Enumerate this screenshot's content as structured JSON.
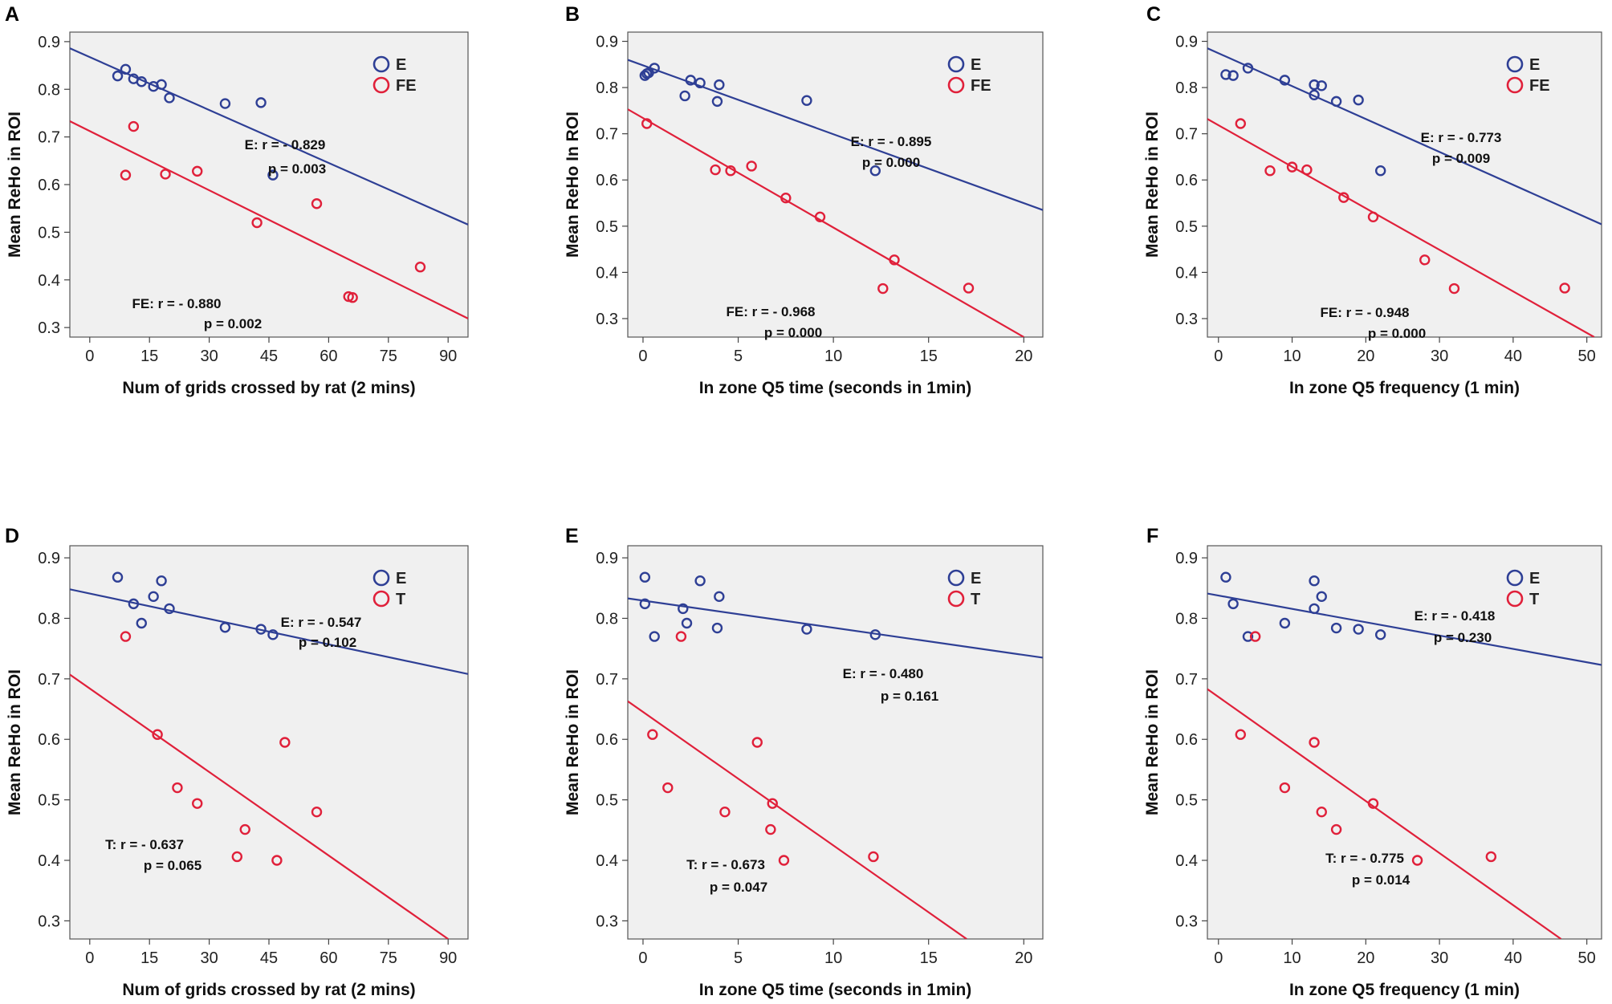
{
  "chart_data": [
    {
      "panel": "A",
      "type": "scatter",
      "xlabel": "Num of grids crossed by rat (2 mins)",
      "ylabel": "Mean ReHo in ROI",
      "xlim": [
        -5,
        95
      ],
      "ylim": [
        0.28,
        0.92
      ],
      "xticks": [
        "0",
        "15",
        "30",
        "45",
        "60",
        "75",
        "90"
      ],
      "yticks": [
        "0.3",
        "0.4",
        "0.5",
        "0.6",
        "0.7",
        "0.8",
        "0.9"
      ],
      "series": [
        {
          "name": "E",
          "color": "#2e3f95",
          "points": [
            [
              7,
              0.828
            ],
            [
              9,
              0.842
            ],
            [
              11,
              0.822
            ],
            [
              13,
              0.816
            ],
            [
              16,
              0.806
            ],
            [
              18,
              0.81
            ],
            [
              20,
              0.782
            ],
            [
              34,
              0.77
            ],
            [
              43,
              0.772
            ],
            [
              46,
              0.62
            ]
          ],
          "fit": [
            [
              -5,
              0.886
            ],
            [
              95,
              0.516
            ]
          ],
          "stat": "E: r = - 0.829",
          "p": "p = 0.003"
        },
        {
          "name": "FE",
          "color": "#e0203a",
          "points": [
            [
              9,
              0.62
            ],
            [
              11,
              0.722
            ],
            [
              19,
              0.622
            ],
            [
              27,
              0.628
            ],
            [
              42,
              0.52
            ],
            [
              57,
              0.56
            ],
            [
              65,
              0.365
            ],
            [
              66,
              0.363
            ],
            [
              83,
              0.427
            ]
          ],
          "fit": [
            [
              -5,
              0.733
            ],
            [
              95,
              0.319
            ]
          ],
          "stat": "FE: r = - 0.880",
          "p": "p = 0.002"
        }
      ]
    },
    {
      "panel": "B",
      "type": "scatter",
      "xlabel": "In zone Q5 time (seconds in 1min)",
      "ylabel": "Mean ReHo In ROI",
      "xlim": [
        -0.8,
        21
      ],
      "ylim": [
        0.26,
        0.92
      ],
      "xticks": [
        "0",
        "5",
        "10",
        "15",
        "20"
      ],
      "yticks": [
        "0.3",
        "0.4",
        "0.5",
        "0.6",
        "0.7",
        "0.8",
        "0.9"
      ],
      "series": [
        {
          "name": "E",
          "color": "#2e3f95",
          "points": [
            [
              0.1,
              0.826
            ],
            [
              0.2,
              0.83
            ],
            [
              0.3,
              0.832
            ],
            [
              0.6,
              0.842
            ],
            [
              2.2,
              0.782
            ],
            [
              2.5,
              0.816
            ],
            [
              3.0,
              0.81
            ],
            [
              3.9,
              0.77
            ],
            [
              4.0,
              0.806
            ],
            [
              8.6,
              0.772
            ],
            [
              12.2,
              0.62
            ]
          ],
          "fit": [
            [
              -0.8,
              0.86
            ],
            [
              21,
              0.535
            ]
          ],
          "stat": "E: r = - 0.895",
          "p": "p = 0.000"
        },
        {
          "name": "FE",
          "color": "#e0203a",
          "points": [
            [
              0.2,
              0.722
            ],
            [
              3.8,
              0.622
            ],
            [
              4.6,
              0.62
            ],
            [
              5.7,
              0.63
            ],
            [
              7.5,
              0.561
            ],
            [
              9.3,
              0.52
            ],
            [
              12.6,
              0.365
            ],
            [
              13.2,
              0.427
            ],
            [
              17.1,
              0.366
            ]
          ],
          "fit": [
            [
              -0.8,
              0.753
            ],
            [
              20,
              0.26
            ]
          ],
          "stat": "FE: r = - 0.968",
          "p": "p = 0.000"
        }
      ]
    },
    {
      "panel": "C",
      "type": "scatter",
      "xlabel": "In zone Q5 frequency (1 min)",
      "ylabel": "Mean ReHo in ROI",
      "xlim": [
        -1.5,
        52
      ],
      "ylim": [
        0.26,
        0.92
      ],
      "xticks": [
        "0",
        "10",
        "20",
        "30",
        "40",
        "50"
      ],
      "yticks": [
        "0.3",
        "0.4",
        "0.5",
        "0.6",
        "0.7",
        "0.8",
        "0.9"
      ],
      "series": [
        {
          "name": "E",
          "color": "#2e3f95",
          "points": [
            [
              1,
              0.828
            ],
            [
              2,
              0.826
            ],
            [
              4,
              0.842
            ],
            [
              9,
              0.816
            ],
            [
              13,
              0.806
            ],
            [
              13,
              0.784
            ],
            [
              14,
              0.804
            ],
            [
              16,
              0.77
            ],
            [
              19,
              0.773
            ],
            [
              22,
              0.62
            ]
          ],
          "fit": [
            [
              -1.5,
              0.885
            ],
            [
              52,
              0.504
            ]
          ],
          "stat": "E: r = - 0.773",
          "p": "p = 0.009"
        },
        {
          "name": "FE",
          "color": "#e0203a",
          "points": [
            [
              3,
              0.722
            ],
            [
              7,
              0.62
            ],
            [
              10,
              0.628
            ],
            [
              12,
              0.622
            ],
            [
              17,
              0.562
            ],
            [
              21,
              0.52
            ],
            [
              28,
              0.427
            ],
            [
              32,
              0.365
            ],
            [
              47,
              0.366
            ]
          ],
          "fit": [
            [
              -1.5,
              0.732
            ],
            [
              51,
              0.26
            ]
          ],
          "stat": "FE: r = - 0.948",
          "p": "p = 0.000"
        }
      ]
    },
    {
      "panel": "D",
      "type": "scatter",
      "xlabel": "Num of grids crossed by rat (2 mins)",
      "ylabel": "Mean ReHo in ROI",
      "xlim": [
        -5,
        95
      ],
      "ylim": [
        0.27,
        0.92
      ],
      "xticks": [
        "0",
        "15",
        "30",
        "45",
        "60",
        "75",
        "90"
      ],
      "yticks": [
        "0.3",
        "0.4",
        "0.5",
        "0.6",
        "0.7",
        "0.8",
        "0.9"
      ],
      "series": [
        {
          "name": "E",
          "color": "#2e3f95",
          "points": [
            [
              7,
              0.868
            ],
            [
              11,
              0.824
            ],
            [
              13,
              0.792
            ],
            [
              16,
              0.836
            ],
            [
              18,
              0.862
            ],
            [
              20,
              0.816
            ],
            [
              34,
              0.785
            ],
            [
              43,
              0.782
            ],
            [
              46,
              0.773
            ]
          ],
          "fit": [
            [
              -5,
              0.848
            ],
            [
              95,
              0.708
            ]
          ],
          "stat": "E: r = - 0.547",
          "p": "p = 0.102"
        },
        {
          "name": "T",
          "color": "#e0203a",
          "points": [
            [
              9,
              0.77
            ],
            [
              17,
              0.608
            ],
            [
              22,
              0.52
            ],
            [
              27,
              0.494
            ],
            [
              37,
              0.406
            ],
            [
              39,
              0.451
            ],
            [
              47,
              0.4
            ],
            [
              49,
              0.595
            ],
            [
              57,
              0.48
            ]
          ],
          "fit": [
            [
              -5,
              0.707
            ],
            [
              90,
              0.27
            ]
          ],
          "stat": "T: r = - 0.637",
          "p": "p = 0.065"
        }
      ]
    },
    {
      "panel": "E",
      "type": "scatter",
      "xlabel": "In zone Q5 time (seconds in 1min)",
      "ylabel": "Mean ReHo in ROI",
      "xlim": [
        -0.8,
        21
      ],
      "ylim": [
        0.27,
        0.92
      ],
      "xticks": [
        "0",
        "5",
        "10",
        "15",
        "20"
      ],
      "yticks": [
        "0.3",
        "0.4",
        "0.5",
        "0.6",
        "0.7",
        "0.8",
        "0.9"
      ],
      "series": [
        {
          "name": "E",
          "color": "#2e3f95",
          "points": [
            [
              0.1,
              0.824
            ],
            [
              0.1,
              0.868
            ],
            [
              0.6,
              0.77
            ],
            [
              2.1,
              0.816
            ],
            [
              2.3,
              0.792
            ],
            [
              3.0,
              0.862
            ],
            [
              3.9,
              0.784
            ],
            [
              4.0,
              0.836
            ],
            [
              8.6,
              0.782
            ],
            [
              12.2,
              0.773
            ]
          ],
          "fit": [
            [
              -0.8,
              0.833
            ],
            [
              21,
              0.735
            ]
          ],
          "stat": "E: r = - 0.480",
          "p": "p = 0.161"
        },
        {
          "name": "T",
          "color": "#e0203a",
          "points": [
            [
              0.5,
              0.608
            ],
            [
              1.3,
              0.52
            ],
            [
              2.0,
              0.77
            ],
            [
              4.3,
              0.48
            ],
            [
              6.0,
              0.595
            ],
            [
              6.7,
              0.451
            ],
            [
              6.8,
              0.494
            ],
            [
              7.4,
              0.4
            ],
            [
              12.1,
              0.406
            ]
          ],
          "fit": [
            [
              -0.8,
              0.663
            ],
            [
              17,
              0.27
            ]
          ],
          "stat": "T: r = - 0.673",
          "p": "p = 0.047"
        }
      ]
    },
    {
      "panel": "F",
      "type": "scatter",
      "xlabel": "In zone Q5 frequency (1 min)",
      "ylabel": "Mean ReHo in ROI",
      "xlim": [
        -1.5,
        52
      ],
      "ylim": [
        0.27,
        0.92
      ],
      "xticks": [
        "0",
        "10",
        "20",
        "30",
        "40",
        "50"
      ],
      "yticks": [
        "0.3",
        "0.4",
        "0.5",
        "0.6",
        "0.7",
        "0.8",
        "0.9"
      ],
      "series": [
        {
          "name": "E",
          "color": "#2e3f95",
          "points": [
            [
              1,
              0.868
            ],
            [
              2,
              0.824
            ],
            [
              4,
              0.77
            ],
            [
              9,
              0.792
            ],
            [
              13,
              0.862
            ],
            [
              13,
              0.816
            ],
            [
              14,
              0.836
            ],
            [
              16,
              0.784
            ],
            [
              19,
              0.782
            ],
            [
              22,
              0.773
            ]
          ],
          "fit": [
            [
              -1.5,
              0.841
            ],
            [
              52,
              0.723
            ]
          ],
          "stat": "E: r = - 0.418",
          "p": "p = 0.230"
        },
        {
          "name": "T",
          "color": "#e0203a",
          "points": [
            [
              3,
              0.608
            ],
            [
              5,
              0.77
            ],
            [
              9,
              0.52
            ],
            [
              13,
              0.595
            ],
            [
              14,
              0.48
            ],
            [
              16,
              0.451
            ],
            [
              21,
              0.494
            ],
            [
              27,
              0.4
            ],
            [
              37,
              0.406
            ]
          ],
          "fit": [
            [
              -1.5,
              0.683
            ],
            [
              46.5,
              0.27
            ]
          ],
          "stat": "T: r = - 0.775",
          "p": "p = 0.014"
        }
      ]
    }
  ]
}
